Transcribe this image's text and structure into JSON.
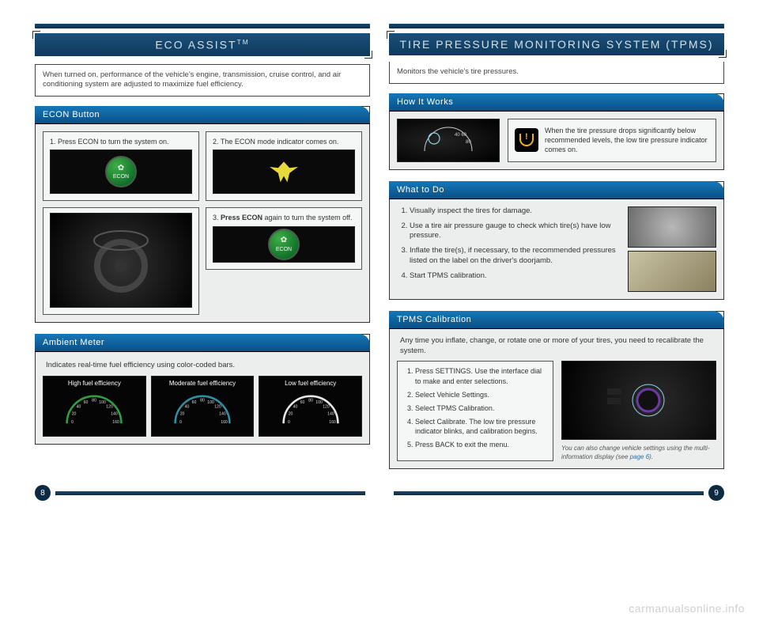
{
  "colors": {
    "header_gradient_top": "#1578b9",
    "header_gradient_bottom": "#0b4f84",
    "title_gradient_top": "#1c4f78",
    "title_gradient_bottom": "#0e3a5e",
    "rule_top": "#15456f",
    "rule_bottom": "#0e2f4c",
    "corner": "#6aa9cc",
    "panel_bg": "#eceeee",
    "econ_green_light": "#3fae47",
    "econ_green_dark": "#0e6f28",
    "leaf_yellow": "#e8d93a",
    "tpms_amber": "#f3b300",
    "link": "#2a6da8"
  },
  "left": {
    "title": "ECO ASSIST",
    "title_tm": "TM",
    "intro": "When turned on, performance of the vehicle's engine, transmission, cruise control, and air conditioning system are adjusted to maximize fuel efficiency.",
    "econ": {
      "header": "ECON Button",
      "step1": "1.  Press ECON to turn the system on.",
      "step2": "2.  The ECON mode indicator comes on.",
      "step3_prefix": "3.  ",
      "step3_bold": "Press ECON",
      "step3_suffix": " again to turn the system off.",
      "econ_label": "ECON"
    },
    "ambient": {
      "header": "Ambient Meter",
      "intro": "Indicates real-time fuel efficiency using color-coded bars.",
      "labels": [
        "High fuel efficiency",
        "Moderate fuel efficiency",
        "Low fuel efficiency"
      ],
      "arc_colors": [
        "#2ea043",
        "#2e8fa0",
        "#e6e6e6"
      ],
      "ticks": [
        "0",
        "20",
        "40",
        "60",
        "80",
        "100",
        "120",
        "140",
        "160"
      ]
    }
  },
  "right": {
    "title": "TIRE PRESSURE MONITORING SYSTEM (TPMS)",
    "intro": "Monitors the vehicle's tire pressures.",
    "hiw": {
      "header": "How It Works",
      "text": "When the tire pressure drops significantly below recommended levels, the low tire pressure indicator comes on."
    },
    "whatdo": {
      "header": "What to Do",
      "items": [
        "Visually inspect the tires for damage.",
        "Use a tire air pressure gauge to check which tire(s) have low pressure.",
        "Inflate the tire(s), if necessary, to the recommended pressures listed on the label on the driver's doorjamb.",
        "Start TPMS calibration."
      ]
    },
    "calib": {
      "header": "TPMS Calibration",
      "intro": "Any time you inflate, change, or rotate one or more of your tires, you need to recalibrate the system.",
      "items": [
        "Press SETTINGS. Use the interface dial to make and enter selections.",
        "Select Vehicle Settings.",
        "Select TPMS Calibration.",
        "Select Calibrate. The low tire pressure indicator blinks, and calibration begins.",
        "Press BACK to exit the menu."
      ],
      "note_prefix": "You can also change vehicle settings using the multi-information display (see ",
      "note_link": "page 6",
      "note_suffix": ")."
    }
  },
  "footer": {
    "left_page": "8",
    "right_page": "9"
  },
  "watermark": "carmanualsonline.info"
}
